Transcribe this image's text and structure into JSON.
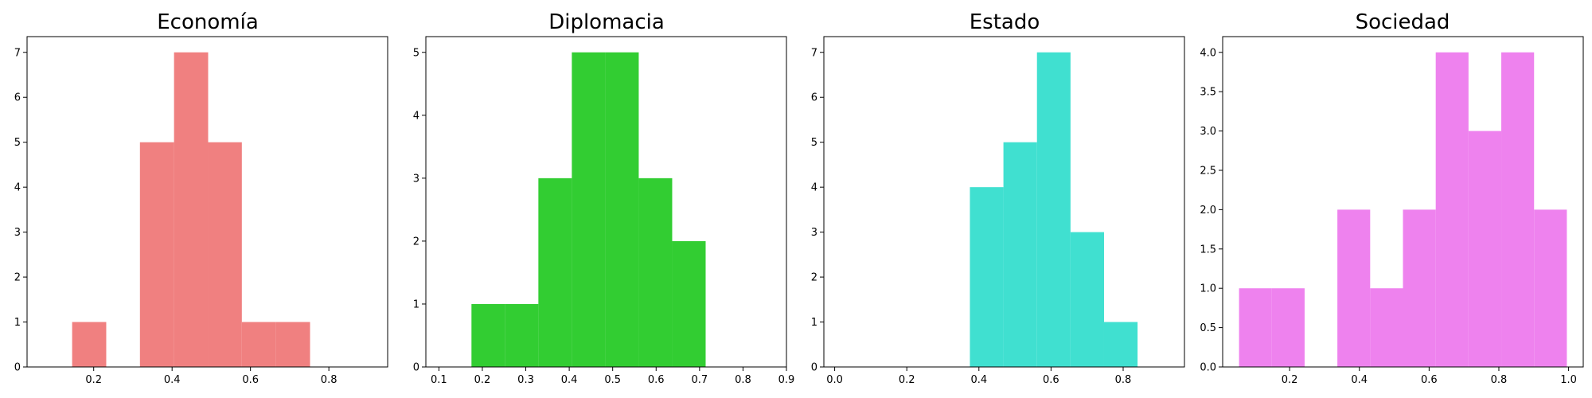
{
  "chart_data": [
    {
      "type": "bar",
      "title": "Economía",
      "color": "#f08080",
      "bins": [
        {
          "x0": 0.145,
          "x1": 0.232,
          "count": 1
        },
        {
          "x0": 0.232,
          "x1": 0.318,
          "count": 0
        },
        {
          "x0": 0.318,
          "x1": 0.405,
          "count": 5
        },
        {
          "x0": 0.405,
          "x1": 0.492,
          "count": 7
        },
        {
          "x0": 0.492,
          "x1": 0.578,
          "count": 5
        },
        {
          "x0": 0.578,
          "x1": 0.665,
          "count": 1
        },
        {
          "x0": 0.665,
          "x1": 0.752,
          "count": 1
        }
      ],
      "xlim": [
        0.03,
        0.95
      ],
      "ylim": [
        0,
        7.35
      ],
      "xticks": [
        0.2,
        0.4,
        0.6,
        0.8
      ],
      "yticks": [
        0,
        1,
        2,
        3,
        4,
        5,
        6,
        7
      ],
      "xtick_labels": [
        "0.2",
        "0.4",
        "0.6",
        "0.8"
      ],
      "ytick_labels": [
        "0",
        "1",
        "2",
        "3",
        "4",
        "5",
        "6",
        "7"
      ]
    },
    {
      "type": "bar",
      "title": "Diplomacia",
      "color": "#32cd32",
      "bins": [
        {
          "x0": 0.175,
          "x1": 0.252,
          "count": 1
        },
        {
          "x0": 0.252,
          "x1": 0.329,
          "count": 1
        },
        {
          "x0": 0.329,
          "x1": 0.406,
          "count": 3
        },
        {
          "x0": 0.406,
          "x1": 0.483,
          "count": 5
        },
        {
          "x0": 0.483,
          "x1": 0.56,
          "count": 5
        },
        {
          "x0": 0.56,
          "x1": 0.637,
          "count": 3
        },
        {
          "x0": 0.637,
          "x1": 0.714,
          "count": 2
        }
      ],
      "xlim": [
        0.07,
        0.9
      ],
      "ylim": [
        0,
        5.25
      ],
      "xticks": [
        0.1,
        0.2,
        0.3,
        0.4,
        0.5,
        0.6,
        0.7,
        0.8,
        0.9
      ],
      "yticks": [
        0,
        1,
        2,
        3,
        4,
        5
      ],
      "xtick_labels": [
        "0.1",
        "0.2",
        "0.3",
        "0.4",
        "0.5",
        "0.6",
        "0.7",
        "0.8",
        "0.9"
      ],
      "ytick_labels": [
        "0",
        "1",
        "2",
        "3",
        "4",
        "5"
      ]
    },
    {
      "type": "bar",
      "title": "Estado",
      "color": "#40e0d0",
      "bins": [
        {
          "x0": 0.375,
          "x1": 0.468,
          "count": 4
        },
        {
          "x0": 0.468,
          "x1": 0.561,
          "count": 5
        },
        {
          "x0": 0.561,
          "x1": 0.654,
          "count": 7
        },
        {
          "x0": 0.654,
          "x1": 0.747,
          "count": 3
        },
        {
          "x0": 0.747,
          "x1": 0.84,
          "count": 1
        }
      ],
      "xlim": [
        -0.03,
        0.97
      ],
      "ylim": [
        0,
        7.35
      ],
      "xticks": [
        0.0,
        0.2,
        0.4,
        0.6,
        0.8
      ],
      "yticks": [
        0,
        1,
        2,
        3,
        4,
        5,
        6,
        7
      ],
      "xtick_labels": [
        "0.0",
        "0.2",
        "0.4",
        "0.6",
        "0.8"
      ],
      "ytick_labels": [
        "0",
        "1",
        "2",
        "3",
        "4",
        "5",
        "6",
        "7"
      ]
    },
    {
      "type": "bar",
      "title": "Sociedad",
      "color": "#ee82ee",
      "bins": [
        {
          "x0": 0.055,
          "x1": 0.149,
          "count": 1
        },
        {
          "x0": 0.149,
          "x1": 0.243,
          "count": 1
        },
        {
          "x0": 0.243,
          "x1": 0.337,
          "count": 0
        },
        {
          "x0": 0.337,
          "x1": 0.431,
          "count": 2
        },
        {
          "x0": 0.431,
          "x1": 0.525,
          "count": 1
        },
        {
          "x0": 0.525,
          "x1": 0.619,
          "count": 2
        },
        {
          "x0": 0.619,
          "x1": 0.713,
          "count": 4
        },
        {
          "x0": 0.713,
          "x1": 0.807,
          "count": 3
        },
        {
          "x0": 0.807,
          "x1": 0.901,
          "count": 4
        },
        {
          "x0": 0.901,
          "x1": 0.995,
          "count": 2
        }
      ],
      "xlim": [
        0.008,
        1.042
      ],
      "ylim": [
        0,
        4.2
      ],
      "xticks": [
        0.2,
        0.4,
        0.6,
        0.8,
        1.0
      ],
      "yticks": [
        0,
        0.5,
        1.0,
        1.5,
        2.0,
        2.5,
        3.0,
        3.5,
        4.0
      ],
      "xtick_labels": [
        "0.2",
        "0.4",
        "0.6",
        "0.8",
        "1.0"
      ],
      "ytick_labels": [
        "0.0",
        "0.5",
        "1.0",
        "1.5",
        "2.0",
        "2.5",
        "3.0",
        "3.5",
        "4.0"
      ]
    }
  ]
}
